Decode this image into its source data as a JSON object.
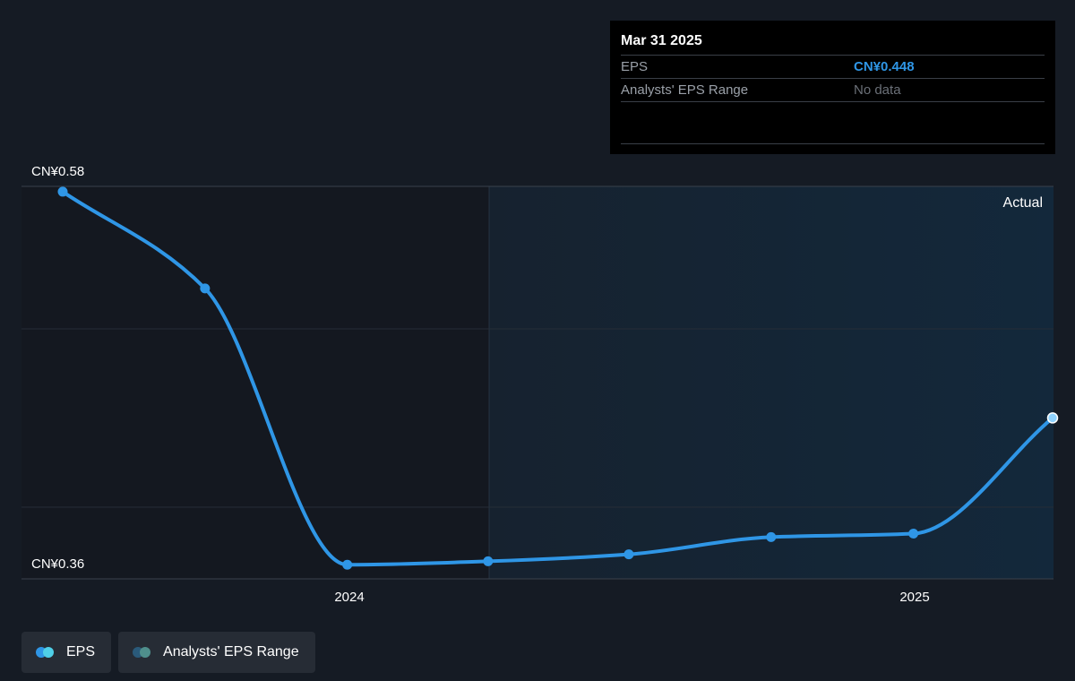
{
  "chart_data": {
    "type": "line",
    "x": [
      "2023-06-30",
      "2023-09-30",
      "2023-12-31",
      "2024-03-31",
      "2024-06-30",
      "2024-09-30",
      "2024-12-31",
      "2025-03-31"
    ],
    "series": [
      {
        "name": "EPS",
        "values": [
          0.579,
          0.523,
          0.363,
          0.365,
          0.369,
          0.379,
          0.381,
          0.448
        ]
      }
    ],
    "ylim": [
      0.36,
      0.58
    ],
    "y_tick_labels": [
      "CN¥0.58",
      "CN¥0.36"
    ],
    "x_tick_labels": [
      "2024",
      "2025"
    ],
    "forecast_label": "Actual",
    "colors": {
      "eps": "#2f96e6",
      "range": "#4f8f8c",
      "forecast_bg": "#13283b"
    }
  },
  "tooltip": {
    "date": "Mar 31 2025",
    "rows": [
      {
        "label": "EPS",
        "value": "CN¥0.448"
      },
      {
        "label": "Analysts' EPS Range",
        "value": "No data"
      }
    ]
  },
  "legend": [
    {
      "label": "EPS",
      "icon": "eps-legend-icon"
    },
    {
      "label": "Analysts' EPS Range",
      "icon": "range-legend-icon"
    }
  ]
}
